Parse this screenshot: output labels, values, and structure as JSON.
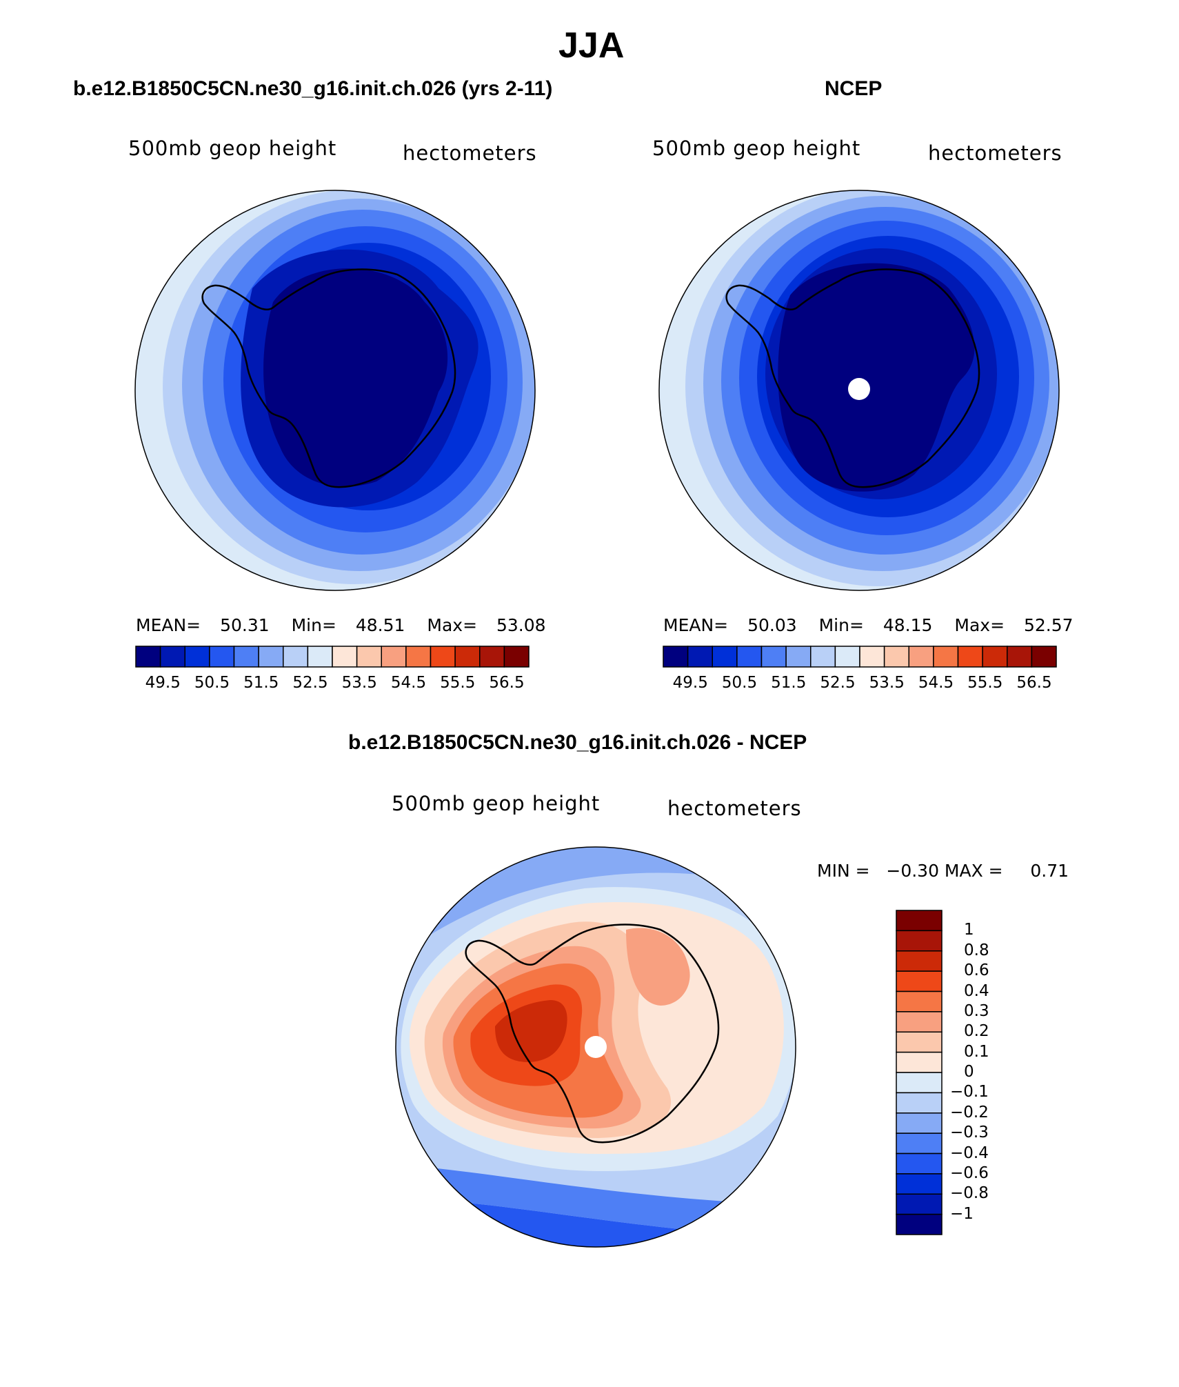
{
  "page": {
    "title": "JJA"
  },
  "panels": [
    {
      "id": "model",
      "title": "b.e12.B1850C5CN.ne30_g16.init.ch.026 (yrs 2-11)",
      "left_label": "500mb  geop  height",
      "right_label": "hectometers",
      "stats": {
        "mean_label": "MEAN=",
        "mean": "50.31",
        "min_label": "Min=",
        "min": "48.51",
        "max_label": "Max=",
        "max": "53.08"
      },
      "colorbar_ticks": [
        "49.5",
        "50.5",
        "51.5",
        "52.5",
        "53.5",
        "54.5",
        "55.5",
        "56.5"
      ]
    },
    {
      "id": "obs",
      "title": "NCEP",
      "left_label": "500mb  geop  height",
      "right_label": "hectometers",
      "stats": {
        "mean_label": "MEAN=",
        "mean": "50.03",
        "min_label": "Min=",
        "min": "48.15",
        "max_label": "Max=",
        "max": "52.57"
      },
      "colorbar_ticks": [
        "49.5",
        "50.5",
        "51.5",
        "52.5",
        "53.5",
        "54.5",
        "55.5",
        "56.5"
      ]
    },
    {
      "id": "diff",
      "title": "b.e12.B1850C5CN.ne30_g16.init.ch.026 - NCEP",
      "left_label": "500mb  geop  height",
      "right_label": "hectometers",
      "stats_text": "MIN =   −0.30 MAX =     0.71",
      "colorbar_ticks": [
        "1",
        "0.8",
        "0.6",
        "0.4",
        "0.3",
        "0.2",
        "0.1",
        "0",
        "−0.1",
        "−0.2",
        "−0.3",
        "−0.4",
        "−0.6",
        "−0.8",
        "−1"
      ]
    }
  ],
  "colors": {
    "abs_scale": [
      "#00007f",
      "#0019b3",
      "#0030d8",
      "#2457f0",
      "#4e7ff5",
      "#86aaf5",
      "#b9d0f7",
      "#dbeaf8",
      "#fde6d8",
      "#fbc8ad",
      "#f8a080",
      "#f57645",
      "#ee4818",
      "#cc2a08",
      "#a81508",
      "#7a0000"
    ],
    "diff_scale_top_to_bottom": [
      "#7a0000",
      "#a81508",
      "#cc2a08",
      "#ee4818",
      "#f57645",
      "#f8a080",
      "#fbc8ad",
      "#fde6d8",
      "#dbeaf8",
      "#b9d0f7",
      "#86aaf5",
      "#4e7ff5",
      "#2457f0",
      "#0030d8",
      "#0019b3",
      "#00007f"
    ]
  }
}
